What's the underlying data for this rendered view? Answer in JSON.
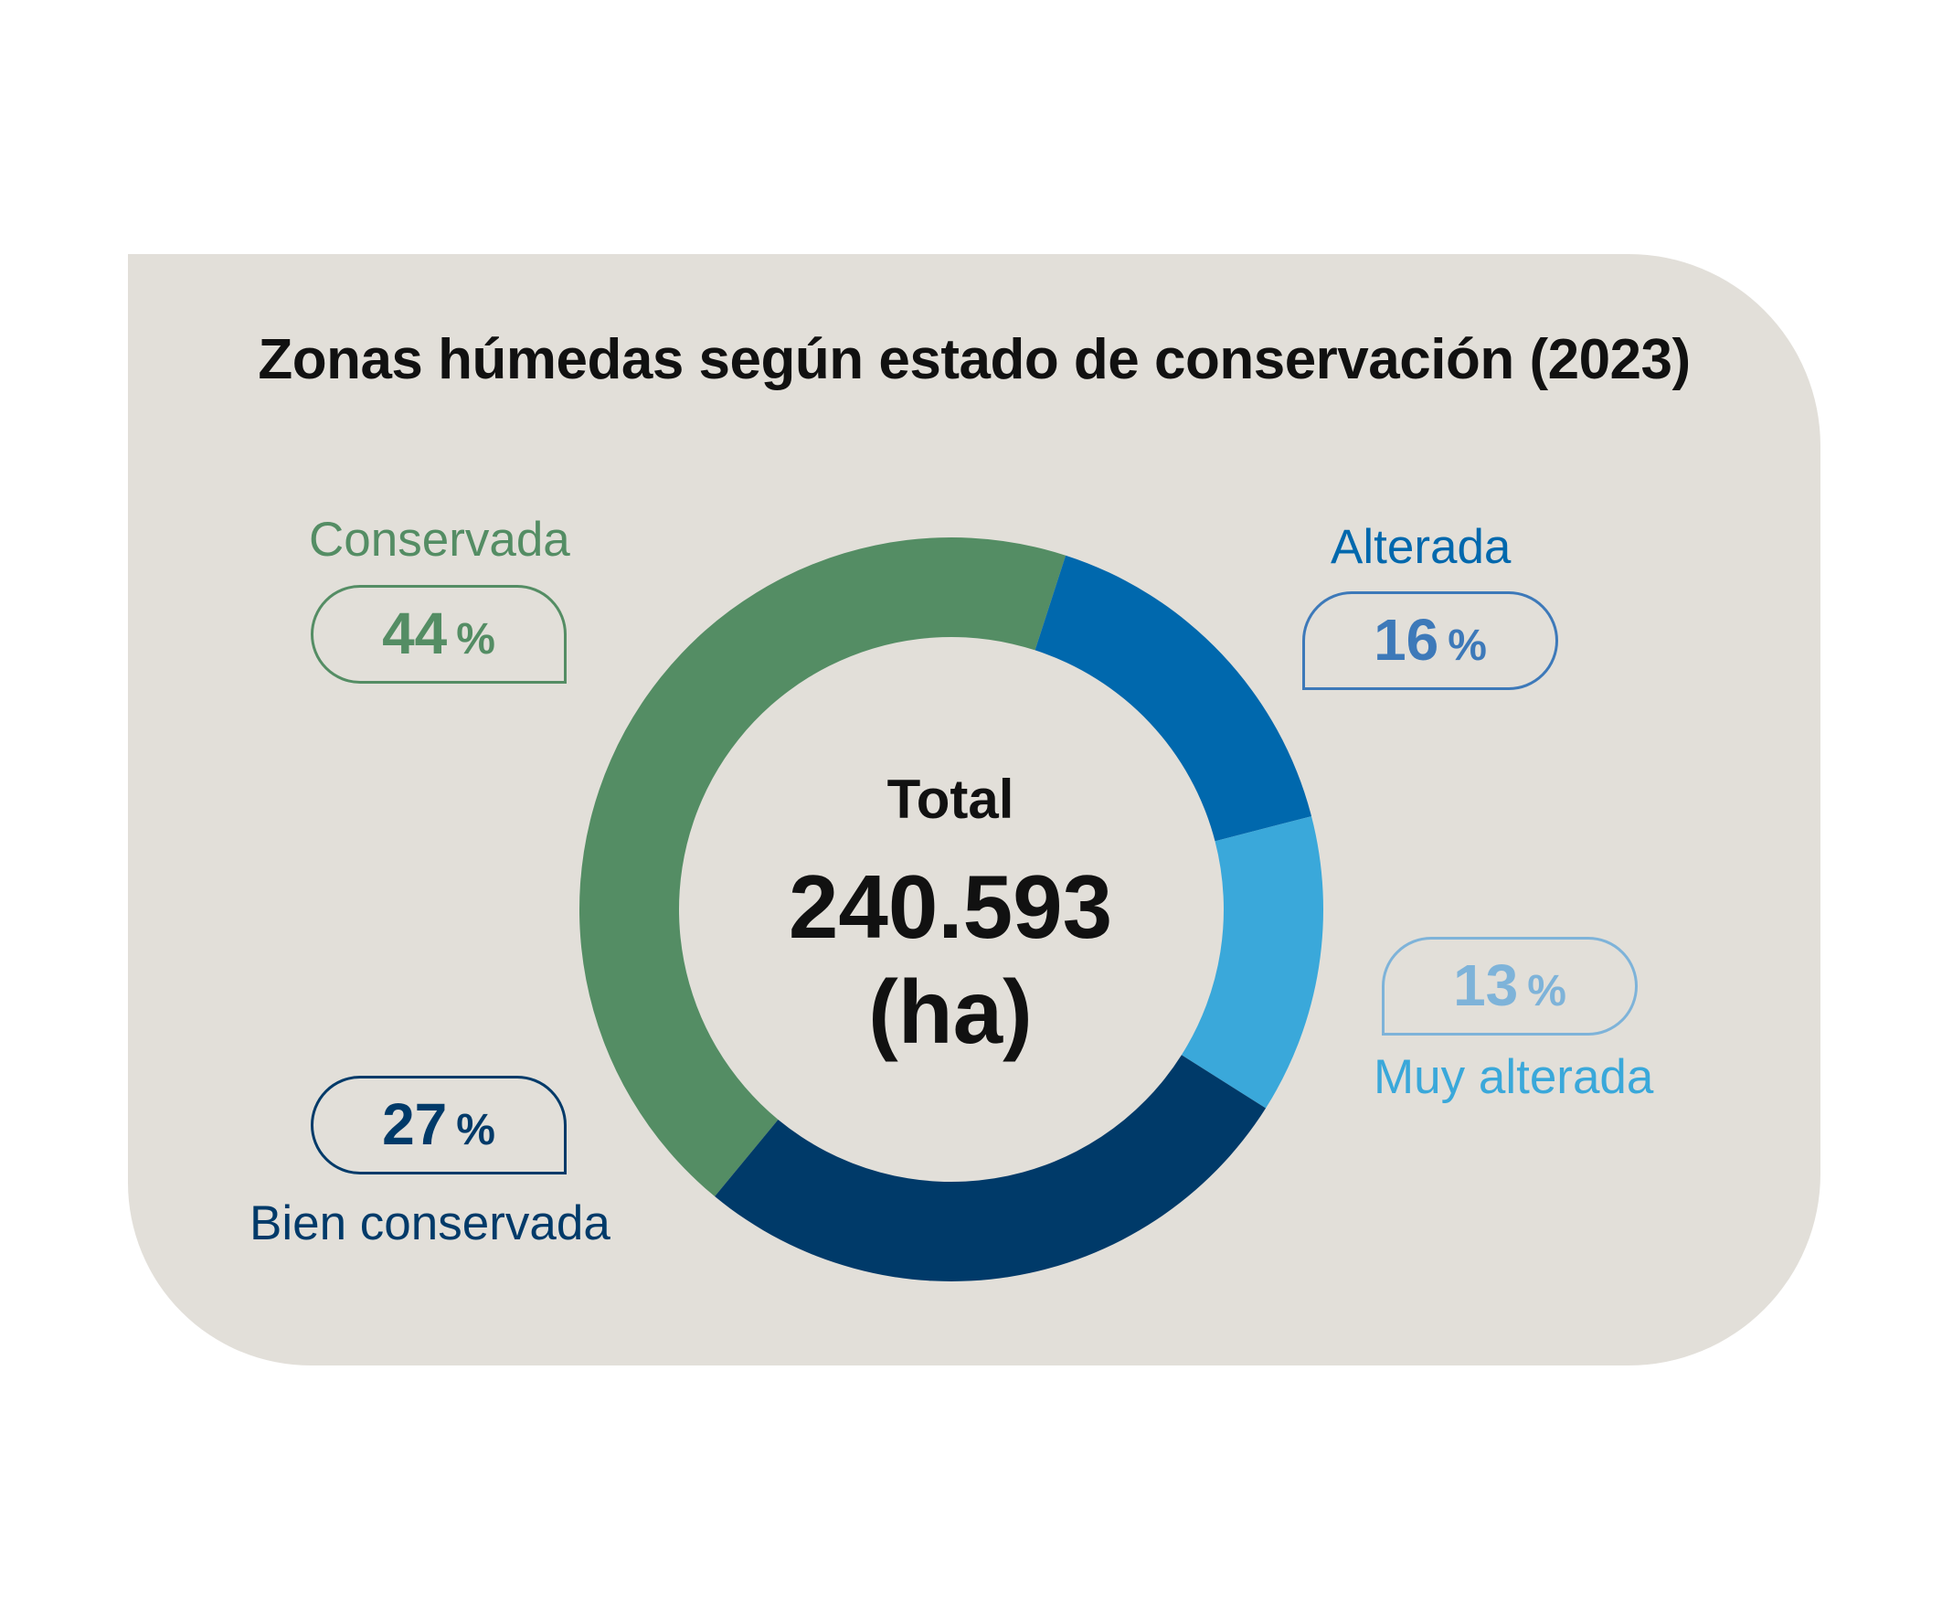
{
  "chart_data": {
    "type": "pie",
    "variant": "donut",
    "title": "Zonas húmedas según estado de conservación (2023)",
    "center_label": "Total",
    "center_value": "240.593",
    "center_unit": "(ha)",
    "slices": [
      {
        "name": "Conservada",
        "value": 44,
        "value_label": "44",
        "unit": "%",
        "color": "#548d64"
      },
      {
        "name": "Alterada",
        "value": 16,
        "value_label": "16",
        "unit": "%",
        "color": "#0068ad"
      },
      {
        "name": "Muy alterada",
        "value": 13,
        "value_label": "13",
        "unit": "%",
        "color": "#3aa8da"
      },
      {
        "name": "Bien conservada",
        "value": 27,
        "value_label": "27",
        "unit": "%",
        "color": "#003a69"
      }
    ]
  },
  "colors": {
    "background_card": "#e2dfd9",
    "text_dark": "#111111",
    "label_conservada": "#548d64",
    "label_alterada": "#0068ad",
    "label_muy_alterada": "#3aa8da",
    "pill_alterada": "#3d79b9",
    "pill_muy_alterada": "#7eb3d9",
    "label_bien_conservada": "#003a69"
  }
}
